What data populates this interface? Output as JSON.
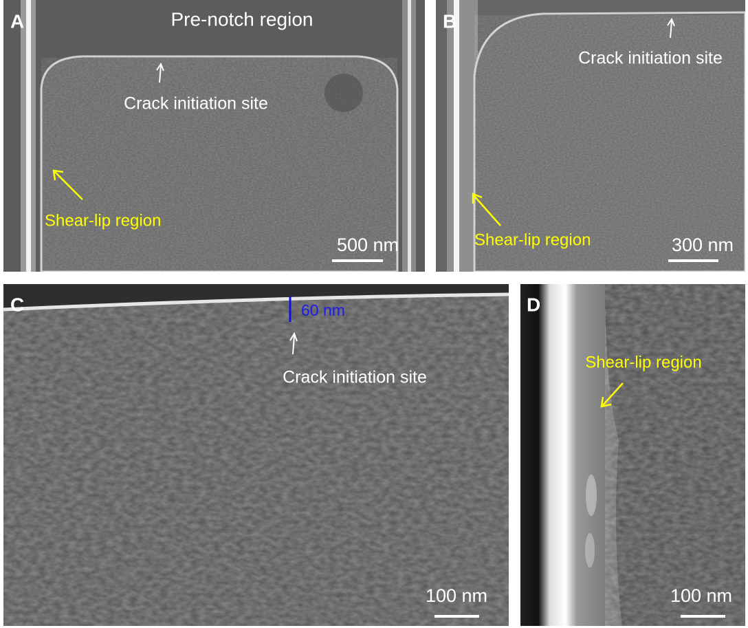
{
  "panels": [
    {
      "label": "A",
      "annotations": [
        "Pre-notch region",
        "Crack initiation site",
        "Shear-lip region"
      ],
      "scale_bar": "500 nm"
    },
    {
      "label": "B",
      "annotations": [
        "Crack initiation site",
        "Shear-lip region"
      ],
      "scale_bar": "300 nm"
    },
    {
      "label": "C",
      "annotations": [
        "60 nm",
        "Crack initiation site"
      ],
      "scale_bar": "100 nm"
    },
    {
      "label": "D",
      "annotations": [
        "Shear-lip region"
      ],
      "scale_bar": "100 nm"
    }
  ]
}
